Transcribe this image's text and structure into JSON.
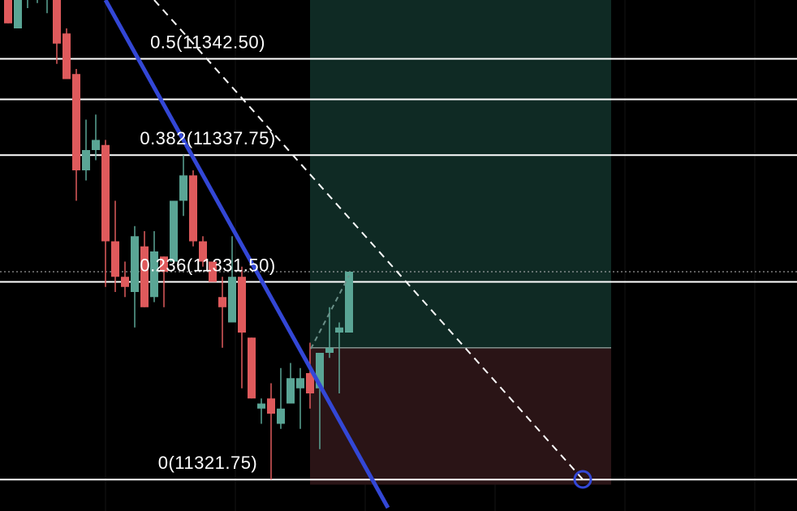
{
  "chart_data": {
    "type": "candlestick",
    "ylim": [
      11320.2,
      11345.4
    ],
    "up_color": "#5aa595",
    "down_color": "#df5a5c",
    "levels": [
      {
        "label": "0.5(11342.50)",
        "value": 11342.5
      },
      {
        "label": null,
        "value": 11340.5
      },
      {
        "label": "0.382(11337.75)",
        "value": 11337.75
      },
      {
        "label": "0.236(11331.50)",
        "value": 11331.5
      },
      {
        "label": "0(11321.75)",
        "value": 11321.75
      }
    ],
    "last_price": 11332,
    "position": {
      "target": 11345.5,
      "entry": 11328.25,
      "stop": 11321.5
    },
    "ohlc": [
      [
        11345.5,
        11345.5,
        11344.25,
        11344.25
      ],
      [
        11344,
        11345.5,
        11344,
        11345.5
      ],
      [
        11345.5,
        11345.5,
        11345,
        11345.5
      ],
      [
        11345.5,
        11345.5,
        11345.25,
        11345.5
      ],
      [
        11345.5,
        11345.5,
        11344.75,
        11345.5
      ],
      [
        11345.5,
        11345.5,
        11342.25,
        11343.25
      ],
      [
        11343.75,
        11344,
        11341.5,
        11341.5
      ],
      [
        11341.75,
        11342,
        11335.5,
        11337
      ],
      [
        11337,
        11339.5,
        11336.5,
        11338
      ],
      [
        11338,
        11339.75,
        11337.5,
        11338.5
      ],
      [
        11338.25,
        11338.5,
        11331.25,
        11333.5
      ],
      [
        11333.5,
        11335.5,
        11331,
        11331.75
      ],
      [
        11331.75,
        11332.5,
        11330.75,
        11331.25
      ],
      [
        11331,
        11334.25,
        11329.25,
        11333.75
      ],
      [
        11333.25,
        11334,
        11330.25,
        11330.25
      ],
      [
        11330.75,
        11334,
        11330.5,
        11333
      ],
      [
        11332.75,
        11332.75,
        11330.25,
        11332
      ],
      [
        11332.5,
        11335.5,
        11332.5,
        11335.5
      ],
      [
        11335.5,
        11337.75,
        11334.75,
        11336.75
      ],
      [
        11336.75,
        11337,
        11333.25,
        11333.5
      ],
      [
        11333.5,
        11333.75,
        11332.25,
        11332.5
      ],
      [
        11332.5,
        11332.5,
        11331.5,
        11331.5
      ],
      [
        11330.75,
        11331.75,
        11328.25,
        11330.25
      ],
      [
        11329.5,
        11333.75,
        11329.5,
        11331.75
      ],
      [
        11331.75,
        11332.25,
        11326.25,
        11329
      ],
      [
        11328.75,
        11328.75,
        11325.75,
        11325.75
      ],
      [
        11325.25,
        11325.75,
        11324.5,
        11325.5
      ],
      [
        11325.75,
        11326.5,
        11321.75,
        11325
      ],
      [
        11324.5,
        11327.25,
        11324.25,
        11325.25
      ],
      [
        11325.5,
        11327.5,
        11325.5,
        11326.75
      ],
      [
        11326.25,
        11327.25,
        11324.25,
        11326.75
      ],
      [
        11327,
        11328.5,
        11325.25,
        11326
      ],
      [
        11326.25,
        11328,
        11323.25,
        11328
      ],
      [
        11328,
        11330.25,
        11327.75,
        11328.25
      ],
      [
        11329,
        11329.5,
        11326,
        11329.25
      ],
      [
        11329,
        11332,
        11329,
        11332
      ]
    ]
  }
}
